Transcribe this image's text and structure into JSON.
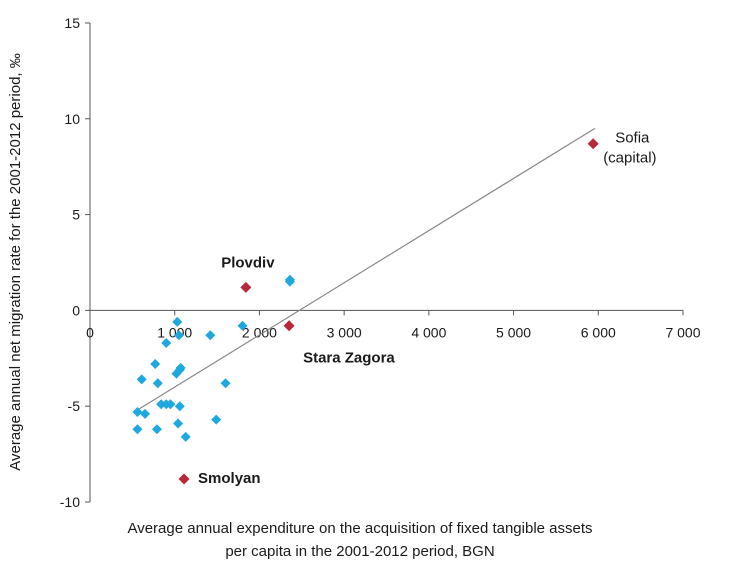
{
  "chart_data": {
    "type": "scatter",
    "title": "",
    "xlabel_lines": [
      "Average annual expenditure on the acquisition of fixed tangible assets",
      "per capita in the 2001-2012 period, BGN"
    ],
    "ylabel": "Average annual net migration rate for the 2001-2012 period, ‰",
    "xlim": [
      0,
      7000
    ],
    "ylim": [
      -10,
      15
    ],
    "x_ticks": [
      0,
      1000,
      2000,
      3000,
      4000,
      5000,
      6000,
      7000
    ],
    "x_tick_labels": [
      "0",
      "1 000",
      "2 000",
      "3 000",
      "4 000",
      "5 000",
      "6 000",
      "7 000"
    ],
    "y_ticks": [
      15,
      10,
      5,
      0,
      -5,
      -10
    ],
    "y_tick_labels": [
      "15",
      "10",
      "5",
      "0",
      "-5",
      "-10"
    ],
    "grid": false,
    "colors": {
      "regions": "#1fa8e0",
      "highlighted": "#b8283a",
      "trendline": "#888888",
      "axis": "#555555"
    },
    "series": [
      {
        "marker": "diamond",
        "points": [
          [
            560,
            -5.3
          ],
          [
            560,
            -6.2
          ],
          [
            610,
            -3.6
          ],
          [
            650,
            -5.4
          ],
          [
            770,
            -2.8
          ],
          [
            790,
            -6.2
          ],
          [
            800,
            -3.8
          ],
          [
            840,
            -4.9
          ],
          [
            900,
            -1.7
          ],
          [
            900,
            -4.9
          ],
          [
            950,
            -4.9
          ],
          [
            1020,
            -3.3
          ],
          [
            1030,
            -0.6
          ],
          [
            1040,
            -5.9
          ],
          [
            1050,
            -1.3
          ],
          [
            1060,
            -5.0
          ],
          [
            1060,
            -3.1
          ],
          [
            1070,
            -3.0
          ],
          [
            1130,
            -6.6
          ],
          [
            1420,
            -1.3
          ],
          [
            1490,
            -5.7
          ],
          [
            1600,
            -3.8
          ],
          [
            1800,
            -0.8
          ],
          [
            2360,
            1.5
          ],
          [
            2360,
            1.6
          ]
        ]
      },
      {
        "marker": "diamond",
        "points": [
          {
            "x": 5940,
            "y": 8.7,
            "label_lines": [
              "Sofia",
              "(capital)"
            ]
          },
          {
            "x": 1840,
            "y": 1.2,
            "label_lines": [
              "Plovdiv"
            ]
          },
          {
            "x": 2350,
            "y": -0.8,
            "label_lines": [
              "Stara Zagora"
            ]
          },
          {
            "x": 1110,
            "y": -8.8,
            "label_lines": [
              "Smolyan"
            ]
          }
        ]
      }
    ],
    "trendline": {
      "x": [
        560,
        5960
      ],
      "y": [
        -5.2,
        9.5
      ]
    }
  }
}
